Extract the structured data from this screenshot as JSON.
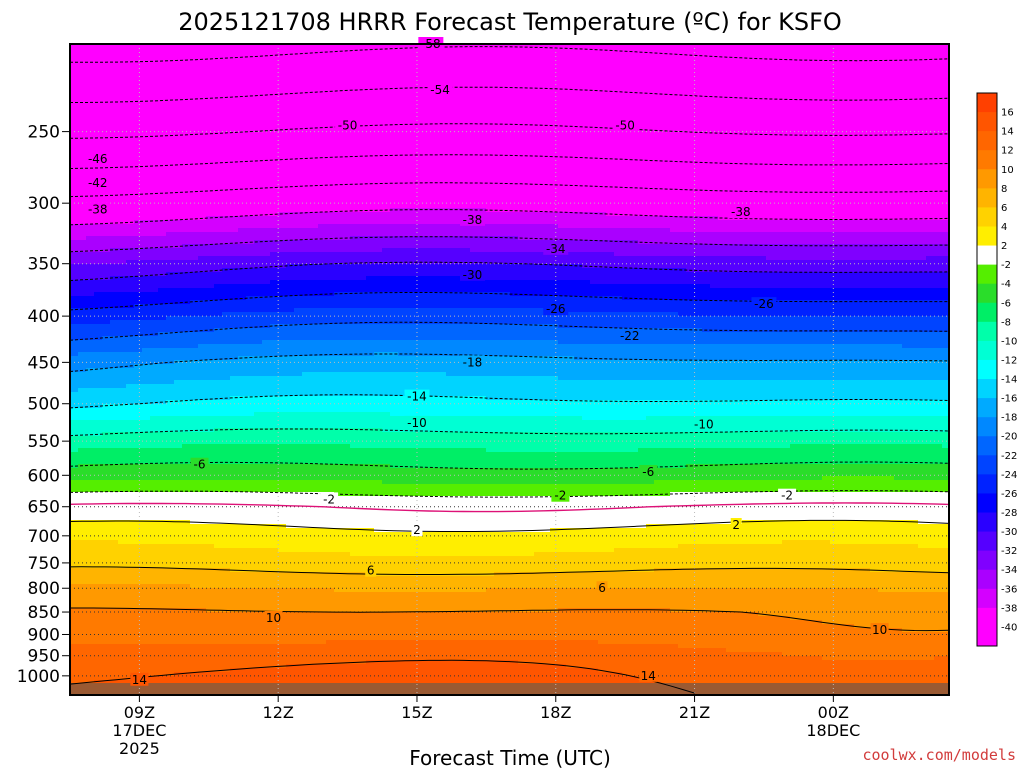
{
  "chart_data": {
    "type": "heatmap",
    "title": "2025121708 HRRR Forecast Temperature (ºC) for KSFO",
    "xlabel": "Forecast Time (UTC)",
    "ylabel": "",
    "credit": "coolwx.com/models",
    "x_range_hours": [
      7.5,
      26.5
    ],
    "y_range_hpa": [
      200,
      1050
    ],
    "x_ticks": [
      {
        "hour": 9,
        "lines": [
          "09Z",
          "17DEC",
          "2025"
        ]
      },
      {
        "hour": 12,
        "lines": [
          "12Z"
        ]
      },
      {
        "hour": 15,
        "lines": [
          "15Z"
        ]
      },
      {
        "hour": 18,
        "lines": [
          "18Z"
        ]
      },
      {
        "hour": 21,
        "lines": [
          "21Z"
        ]
      },
      {
        "hour": 24,
        "lines": [
          "00Z",
          "18DEC"
        ]
      }
    ],
    "y_ticks": [
      250,
      300,
      350,
      400,
      450,
      500,
      550,
      600,
      650,
      700,
      750,
      800,
      850,
      900,
      950,
      1000
    ],
    "temperature_profile": {
      "pressure_hpa": [
        200,
        250,
        300,
        350,
        400,
        450,
        500,
        550,
        600,
        650,
        700,
        750,
        800,
        850,
        900,
        950,
        1000,
        1050
      ],
      "temperature_c": [
        -59,
        -50,
        -40,
        -31,
        -24,
        -18,
        -14,
        -9,
        -5,
        0,
        3,
        5,
        8,
        10,
        11,
        13,
        14,
        15
      ]
    },
    "colorbar": {
      "labels": [
        16,
        14,
        12,
        10,
        8,
        6,
        4,
        2,
        -2,
        -4,
        -6,
        -8,
        -10,
        -12,
        -14,
        -16,
        -18,
        -20,
        -22,
        -24,
        -26,
        -28,
        -30,
        -32,
        -34,
        -36,
        -38,
        -40
      ],
      "bins": [
        {
          "min": 16,
          "color": "#ff4000"
        },
        {
          "min": 14,
          "color": "#ff5500"
        },
        {
          "min": 12,
          "color": "#ff6600"
        },
        {
          "min": 10,
          "color": "#ff7a00"
        },
        {
          "min": 8,
          "color": "#ff9900"
        },
        {
          "min": 6,
          "color": "#ffb400"
        },
        {
          "min": 4,
          "color": "#ffd200"
        },
        {
          "min": 2,
          "color": "#ffee00"
        },
        {
          "min": -2,
          "color": "#ffffff"
        },
        {
          "min": -4,
          "color": "#55ee00"
        },
        {
          "min": -6,
          "color": "#2add2a"
        },
        {
          "min": -8,
          "color": "#00ee66"
        },
        {
          "min": -10,
          "color": "#00ffaa"
        },
        {
          "min": -12,
          "color": "#00ffd4"
        },
        {
          "min": -14,
          "color": "#00ffff"
        },
        {
          "min": -16,
          "color": "#00d4ff"
        },
        {
          "min": -18,
          "color": "#00aaff"
        },
        {
          "min": -20,
          "color": "#0088ff"
        },
        {
          "min": -22,
          "color": "#0066ff"
        },
        {
          "min": -24,
          "color": "#0044ff"
        },
        {
          "min": -26,
          "color": "#0022ff"
        },
        {
          "min": -28,
          "color": "#0000ff"
        },
        {
          "min": -30,
          "color": "#2a00ff"
        },
        {
          "min": -32,
          "color": "#5500ff"
        },
        {
          "min": -34,
          "color": "#8000ff"
        },
        {
          "min": -36,
          "color": "#aa00ff"
        },
        {
          "min": -38,
          "color": "#d400ff"
        },
        {
          "min": -40,
          "color": "#ff00ff"
        },
        {
          "min": -999,
          "color": "#ff00ff"
        }
      ],
      "freezing_line_color": "#dd1177",
      "surface_color": "#9a5a33"
    },
    "contour_labels": [
      {
        "t": -58,
        "hour": 15.3,
        "p": 200
      },
      {
        "t": -54,
        "hour": 15.5,
        "p": 225
      },
      {
        "t": -50,
        "hour": 13.5,
        "p": 246
      },
      {
        "t": -50,
        "hour": 19.5,
        "p": 246
      },
      {
        "t": -46,
        "hour": 8.1,
        "p": 268
      },
      {
        "t": -42,
        "hour": 8.1,
        "p": 285
      },
      {
        "t": -38,
        "hour": 8.1,
        "p": 305
      },
      {
        "t": -38,
        "hour": 16.2,
        "p": 313
      },
      {
        "t": -38,
        "hour": 22.0,
        "p": 307
      },
      {
        "t": -34,
        "hour": 18.0,
        "p": 337
      },
      {
        "t": -30,
        "hour": 16.2,
        "p": 360
      },
      {
        "t": -26,
        "hour": 18.0,
        "p": 393
      },
      {
        "t": -26,
        "hour": 22.5,
        "p": 388
      },
      {
        "t": -22,
        "hour": 19.6,
        "p": 421
      },
      {
        "t": -18,
        "hour": 16.2,
        "p": 450
      },
      {
        "t": -14,
        "hour": 15.0,
        "p": 491
      },
      {
        "t": -10,
        "hour": 15.0,
        "p": 525
      },
      {
        "t": -10,
        "hour": 21.2,
        "p": 527
      },
      {
        "t": -6,
        "hour": 10.3,
        "p": 584
      },
      {
        "t": -6,
        "hour": 20.0,
        "p": 595
      },
      {
        "t": -2,
        "hour": 13.1,
        "p": 638
      },
      {
        "t": -2,
        "hour": 18.1,
        "p": 632
      },
      {
        "t": -2,
        "hour": 23.0,
        "p": 632
      },
      {
        "t": 2,
        "hour": 15.0,
        "p": 690
      },
      {
        "t": 2,
        "hour": 21.9,
        "p": 681
      },
      {
        "t": 6,
        "hour": 14.0,
        "p": 765
      },
      {
        "t": 6,
        "hour": 19.0,
        "p": 800
      },
      {
        "t": 10,
        "hour": 11.9,
        "p": 863
      },
      {
        "t": 10,
        "hour": 25.0,
        "p": 890
      },
      {
        "t": 14,
        "hour": 9.0,
        "p": 1010
      },
      {
        "t": 14,
        "hour": 20.0,
        "p": 1000
      }
    ]
  }
}
